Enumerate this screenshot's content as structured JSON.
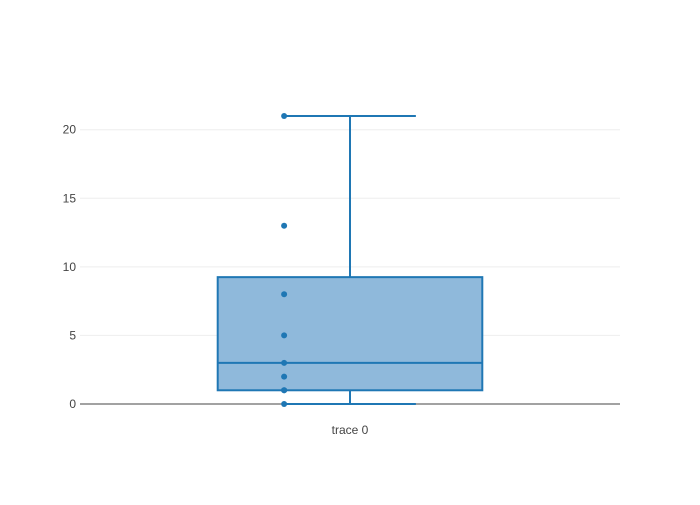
{
  "chart_data": {
    "type": "box",
    "title": "",
    "xlabel": "",
    "ylabel": "",
    "categories": [
      "trace 0"
    ],
    "series": [
      {
        "name": "trace 0",
        "points": [
          0,
          1,
          1,
          2,
          3,
          5,
          8,
          13,
          21
        ],
        "q1": 1,
        "median": 3,
        "q3": 9.25,
        "lowerfence": 0,
        "upperfence": 21,
        "boxpoints": "all"
      }
    ],
    "ylim": [
      -1.167,
      22.167
    ],
    "yticks": [
      0,
      5,
      10,
      15,
      20
    ],
    "grid": true,
    "legend": false,
    "colors": {
      "box_line": "#1f77b4",
      "box_fill": "#8fb9db",
      "grid": "#eeeeee",
      "zero_line": "#444444",
      "tick_text": "#444444"
    }
  }
}
